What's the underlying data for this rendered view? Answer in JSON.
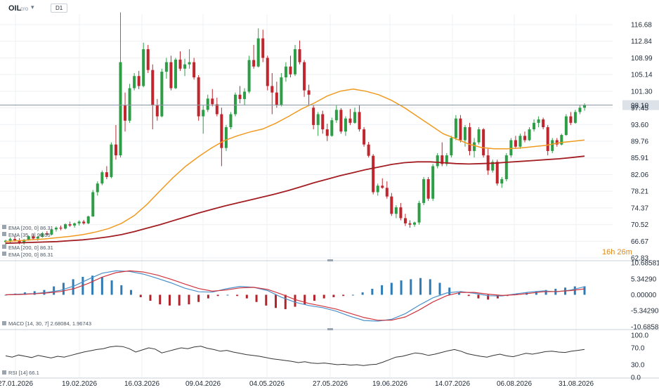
{
  "toolbar": {
    "symbol": "OIL",
    "symbol_suffix": "cro",
    "timeframe": "D1"
  },
  "colors": {
    "up": "#2e9e46",
    "down": "#c0262d",
    "ema_fast": "#f19a20",
    "ema_slow": "#a31d22",
    "price_line": "#8a96a3",
    "price_tag": "#dde2e8",
    "timer": "#e08a1c",
    "macd_line": "#4a90c9",
    "signal_line": "#d0343d",
    "hist_pos": "#2e7bb5",
    "hist_neg": "#b3232a",
    "rsi": "#333333",
    "grid": "#eef0f3",
    "axis_text": "#1f2a36"
  },
  "price_panel": {
    "current_price": "98.10",
    "timer": "16h 26m",
    "y_ticks": [
      "116.68",
      "112.84",
      "108.99",
      "105.14",
      "101.30",
      "97.45",
      "93.60",
      "89.76",
      "85.91",
      "82.06",
      "78.21",
      "74.37",
      "70.52",
      "66.67",
      "62.83"
    ],
    "legends": [
      "EMA [200, 0] 86.31",
      "EMA [35, 0] 90.05",
      "EMA [200, 0] 86.31",
      "EMA [200, 0] 86.31"
    ]
  },
  "macd_panel": {
    "legend": "MACD [14, 30, 7] 2.68084, 1.96743",
    "y_ticks": [
      "10.68581",
      "5.34290",
      "0.00000",
      "-5.34290",
      "-10.68581"
    ]
  },
  "rsi_panel": {
    "legend": "RSI [14] 66.1",
    "y_ticks": [
      "100.0",
      "70.0",
      "30.0",
      "0.0"
    ]
  },
  "x_axis": {
    "labels": [
      "27.01.2026",
      "19.02.2026",
      "16.03.2026",
      "09.04.2026",
      "04.05.2026",
      "27.05.2026",
      "19.06.2026",
      "14.07.2026",
      "06.08.2026",
      "31.08.2026"
    ]
  },
  "chart_data": {
    "type": "candlestick",
    "y_range": [
      62.83,
      116.68
    ],
    "candles": [
      [
        66.5,
        67.0,
        65.8,
        66.8
      ],
      [
        66.8,
        67.5,
        66.3,
        67.2
      ],
      [
        67.2,
        67.8,
        66.6,
        66.9
      ],
      [
        66.9,
        67.4,
        66.0,
        66.4
      ],
      [
        66.4,
        67.2,
        65.9,
        67.0
      ],
      [
        67.0,
        68.0,
        66.8,
        67.8
      ],
      [
        67.8,
        68.3,
        67.0,
        67.3
      ],
      [
        67.3,
        67.9,
        66.8,
        67.7
      ],
      [
        67.7,
        68.8,
        67.5,
        68.5
      ],
      [
        68.5,
        69.0,
        67.9,
        68.2
      ],
      [
        68.2,
        69.6,
        68.0,
        69.4
      ],
      [
        69.4,
        70.1,
        68.9,
        69.8
      ],
      [
        69.8,
        70.3,
        69.2,
        69.6
      ],
      [
        69.6,
        70.8,
        69.4,
        70.6
      ],
      [
        70.6,
        71.2,
        70.0,
        70.3
      ],
      [
        70.3,
        71.0,
        69.8,
        70.8
      ],
      [
        70.8,
        71.5,
        70.3,
        71.2
      ],
      [
        71.2,
        71.6,
        70.5,
        70.8
      ],
      [
        70.8,
        72.6,
        70.6,
        72.4
      ],
      [
        72.4,
        78.5,
        72.3,
        78.0
      ],
      [
        78.0,
        80.5,
        77.2,
        80.0
      ],
      [
        80.0,
        83.0,
        79.6,
        82.6
      ],
      [
        82.6,
        84.0,
        81.0,
        81.5
      ],
      [
        81.5,
        89.5,
        81.2,
        89.0
      ],
      [
        89.0,
        93.5,
        85.5,
        86.5
      ],
      [
        86.5,
        119.5,
        86.0,
        108.0
      ],
      [
        98.0,
        101.0,
        92.0,
        94.5
      ],
      [
        94.5,
        103.0,
        94.0,
        102.0
      ],
      [
        102.0,
        105.5,
        101.5,
        104.8
      ],
      [
        104.8,
        106.0,
        101.8,
        102.5
      ],
      [
        102.5,
        112.5,
        102.2,
        111.0
      ],
      [
        111.0,
        112.0,
        105.5,
        106.2
      ],
      [
        106.2,
        107.5,
        92.5,
        98.0
      ],
      [
        98.0,
        99.5,
        94.5,
        95.5
      ],
      [
        95.5,
        106.5,
        95.3,
        105.8
      ],
      [
        105.8,
        109.0,
        104.2,
        108.0
      ],
      [
        108.0,
        109.5,
        101.5,
        102.0
      ],
      [
        102.0,
        109.0,
        101.8,
        108.6
      ],
      [
        108.6,
        110.5,
        106.0,
        106.5
      ],
      [
        106.5,
        108.8,
        104.8,
        107.5
      ],
      [
        107.5,
        111.0,
        106.5,
        108.0
      ],
      [
        108.0,
        109.0,
        104.0,
        104.5
      ],
      [
        104.5,
        105.0,
        94.5,
        95.5
      ],
      [
        95.5,
        98.0,
        91.5,
        97.0
      ],
      [
        97.0,
        100.5,
        96.5,
        99.6
      ],
      [
        99.6,
        101.8,
        97.8,
        98.3
      ],
      [
        98.3,
        99.8,
        95.5,
        96.0
      ],
      [
        96.0,
        97.5,
        84.0,
        88.2
      ],
      [
        88.2,
        93.5,
        87.5,
        93.0
      ],
      [
        93.0,
        96.5,
        92.5,
        96.0
      ],
      [
        96.0,
        101.0,
        95.5,
        100.5
      ],
      [
        100.5,
        102.5,
        98.5,
        99.5
      ],
      [
        99.5,
        102.0,
        98.0,
        101.2
      ],
      [
        101.2,
        109.5,
        100.8,
        108.5
      ],
      [
        108.5,
        112.0,
        106.5,
        107.0
      ],
      [
        107.0,
        115.8,
        106.8,
        113.5
      ],
      [
        113.5,
        115.5,
        108.0,
        109.0
      ],
      [
        109.0,
        109.5,
        101.5,
        102.5
      ],
      [
        102.5,
        105.5,
        96.0,
        101.0
      ],
      [
        101.0,
        103.5,
        97.5,
        98.2
      ],
      [
        98.2,
        105.5,
        97.8,
        104.5
      ],
      [
        104.5,
        108.0,
        103.5,
        107.0
      ],
      [
        107.0,
        109.5,
        104.5,
        105.2
      ],
      [
        105.2,
        112.0,
        104.8,
        111.0
      ],
      [
        111.0,
        113.0,
        107.5,
        108.0
      ],
      [
        108.0,
        108.5,
        100.0,
        101.5
      ],
      [
        101.5,
        102.8,
        98.0,
        100.5
      ],
      [
        97.5,
        98.0,
        92.5,
        93.5
      ],
      [
        93.5,
        96.5,
        91.0,
        96.0
      ],
      [
        96.0,
        96.8,
        91.5,
        92.5
      ],
      [
        92.5,
        93.8,
        89.8,
        91.0
      ],
      [
        91.0,
        95.2,
        90.8,
        94.6
      ],
      [
        94.6,
        98.0,
        94.0,
        97.0
      ],
      [
        97.0,
        97.4,
        91.5,
        92.0
      ],
      [
        92.0,
        95.5,
        91.0,
        95.0
      ],
      [
        95.0,
        97.2,
        93.5,
        94.0
      ],
      [
        94.0,
        97.5,
        93.8,
        96.5
      ],
      [
        96.5,
        98.0,
        92.0,
        92.5
      ],
      [
        92.5,
        93.0,
        88.5,
        89.0
      ],
      [
        89.0,
        89.6,
        86.0,
        86.4
      ],
      [
        86.4,
        86.8,
        77.5,
        78.0
      ],
      [
        78.0,
        80.0,
        77.2,
        79.5
      ],
      [
        79.5,
        81.2,
        78.8,
        79.0
      ],
      [
        79.0,
        80.5,
        76.5,
        77.0
      ],
      [
        77.0,
        77.8,
        72.5,
        73.0
      ],
      [
        73.0,
        75.0,
        72.0,
        74.5
      ],
      [
        74.5,
        75.5,
        71.5,
        72.0
      ],
      [
        72.0,
        73.0,
        70.2,
        70.8
      ],
      [
        70.8,
        71.5,
        69.8,
        70.5
      ],
      [
        70.5,
        71.2,
        70.0,
        71.0
      ],
      [
        71.0,
        76.0,
        70.5,
        75.5
      ],
      [
        75.5,
        81.5,
        75.0,
        81.0
      ],
      [
        81.0,
        81.5,
        76.0,
        76.5
      ],
      [
        76.5,
        84.5,
        76.0,
        84.0
      ],
      [
        84.0,
        87.0,
        83.5,
        86.5
      ],
      [
        86.5,
        89.5,
        84.0,
        84.5
      ],
      [
        84.5,
        87.0,
        84.0,
        86.5
      ],
      [
        86.5,
        91.0,
        86.0,
        90.5
      ],
      [
        90.5,
        95.8,
        90.0,
        95.0
      ],
      [
        95.0,
        95.8,
        89.5,
        90.0
      ],
      [
        90.0,
        93.5,
        88.5,
        93.0
      ],
      [
        93.0,
        94.0,
        86.5,
        87.5
      ],
      [
        87.5,
        90.5,
        86.0,
        89.5
      ],
      [
        89.5,
        93.0,
        89.0,
        92.5
      ],
      [
        92.5,
        92.8,
        86.0,
        86.5
      ],
      [
        86.5,
        88.0,
        82.0,
        83.0
      ],
      [
        83.0,
        85.5,
        82.5,
        85.0
      ],
      [
        85.0,
        85.5,
        79.5,
        80.0
      ],
      [
        80.0,
        81.5,
        79.0,
        81.0
      ],
      [
        81.0,
        87.0,
        80.5,
        86.5
      ],
      [
        86.5,
        90.5,
        86.0,
        90.0
      ],
      [
        90.0,
        91.0,
        88.0,
        88.5
      ],
      [
        88.5,
        91.5,
        88.0,
        91.0
      ],
      [
        91.0,
        92.0,
        89.5,
        90.0
      ],
      [
        90.0,
        93.0,
        89.8,
        92.5
      ],
      [
        92.5,
        94.8,
        92.0,
        94.0
      ],
      [
        94.0,
        95.5,
        93.0,
        94.8
      ],
      [
        94.8,
        95.2,
        92.5,
        93.0
      ],
      [
        93.0,
        93.5,
        86.5,
        87.5
      ],
      [
        87.5,
        90.5,
        87.0,
        90.0
      ],
      [
        90.0,
        90.5,
        88.5,
        89.0
      ],
      [
        89.0,
        91.5,
        88.8,
        91.2
      ],
      [
        91.2,
        96.0,
        91.0,
        95.5
      ],
      [
        95.5,
        96.5,
        93.5,
        94.0
      ],
      [
        94.0,
        97.0,
        93.8,
        96.5
      ],
      [
        96.5,
        98.0,
        96.0,
        97.5
      ],
      [
        97.5,
        98.5,
        96.8,
        98.1
      ]
    ],
    "ema_fast_name": "EMA [35, 0] 90.05",
    "ema_slow_name": "EMA [200, 0] 86.31",
    "ema_fast": [
      66.6,
      66.8,
      67.0,
      67.2,
      67.5,
      67.8,
      68.2,
      68.8,
      69.6,
      70.8,
      72.6,
      75.2,
      78.3,
      81.3,
      84.0,
      86.2,
      88.2,
      89.9,
      91.0,
      91.9,
      92.6,
      93.9,
      95.5,
      97.2,
      98.6,
      100.2,
      101.3,
      101.8,
      101.3,
      100.5,
      99.2,
      97.5,
      95.5,
      93.5,
      91.5,
      90.3,
      89.1,
      88.3,
      88.0,
      88.0,
      88.2,
      88.5,
      88.8,
      89.4,
      89.7,
      90.05
    ],
    "ema_slow": [
      66.2,
      66.3,
      66.4,
      66.5,
      66.6,
      66.8,
      67.0,
      67.3,
      67.7,
      68.2,
      68.9,
      69.7,
      70.5,
      71.4,
      72.3,
      73.2,
      74.0,
      74.8,
      75.5,
      76.2,
      76.9,
      77.6,
      78.4,
      79.3,
      80.2,
      81.0,
      81.8,
      82.5,
      83.2,
      83.8,
      84.4,
      84.8,
      85.0,
      85.0,
      84.8,
      84.6,
      84.5,
      84.6,
      84.7,
      84.9,
      85.1,
      85.3,
      85.5,
      85.7,
      86.0,
      86.31
    ],
    "macd": {
      "range": [
        -10.68581,
        10.68581
      ],
      "macd_line": [
        0.0,
        0.2,
        0.4,
        0.8,
        1.5,
        3.0,
        5.2,
        7.2,
        8.0,
        7.8,
        6.9,
        5.5,
        4.0,
        2.2,
        1.0,
        0.9,
        2.0,
        2.8,
        2.5,
        1.4,
        -0.8,
        -2.5,
        -3.6,
        -4.3,
        -5.5,
        -7.2,
        -8.6,
        -8.8,
        -8.2,
        -6.3,
        -3.5,
        -1.0,
        0.6,
        1.1,
        0.5,
        -0.3,
        -0.4,
        0.3,
        0.9,
        1.3,
        1.0,
        1.6,
        2.68084
      ],
      "signal_line": [
        0.0,
        0.1,
        0.3,
        0.6,
        1.1,
        2.1,
        3.8,
        5.9,
        7.4,
        8.0,
        7.6,
        6.6,
        5.2,
        3.6,
        2.1,
        1.2,
        1.6,
        2.3,
        2.5,
        1.8,
        0.2,
        -1.6,
        -2.9,
        -3.8,
        -4.8,
        -6.2,
        -7.6,
        -8.5,
        -8.5,
        -7.4,
        -5.1,
        -2.4,
        -0.3,
        0.8,
        0.8,
        0.2,
        -0.2,
        0.0,
        0.5,
        1.0,
        1.1,
        1.4,
        1.96743
      ],
      "histogram": [
        0.0,
        0.1,
        0.2,
        0.3,
        0.4,
        0.7,
        1.0,
        1.3,
        1.5,
        1.6,
        1.5,
        1.2,
        0.8,
        0.4,
        -0.2,
        -0.5,
        -0.8,
        -0.9,
        -0.9,
        -0.8,
        -0.6,
        -0.3,
        -0.1,
        0.0,
        -0.1,
        -0.3,
        -0.6,
        -0.9,
        -1.1,
        -1.2,
        -1.0,
        -0.8,
        -0.5,
        -0.3,
        -0.2,
        -0.1,
        0.0,
        0.2,
        0.5,
        0.8,
        1.0,
        1.2,
        1.3,
        1.4,
        1.3,
        1.0,
        0.6,
        0.2,
        -0.1,
        -0.3,
        -0.4,
        -0.3,
        -0.1,
        0.1,
        0.2,
        0.3,
        0.4,
        0.5,
        0.6,
        0.7,
        0.71
      ]
    },
    "rsi": {
      "range": [
        0,
        100
      ],
      "values": [
        51,
        48,
        53,
        50,
        47,
        52,
        49,
        46,
        50,
        48,
        52,
        56,
        60,
        63,
        66,
        68,
        72,
        74,
        73,
        68,
        60,
        65,
        70,
        67,
        58,
        62,
        66,
        70,
        68,
        72,
        74,
        69,
        66,
        62,
        64,
        60,
        57,
        54,
        52,
        50,
        47,
        44,
        42,
        40,
        38,
        35,
        37,
        34,
        33,
        34,
        32,
        30,
        31,
        29,
        30,
        28,
        30,
        31,
        36,
        42,
        48,
        50,
        54,
        58,
        56,
        52,
        55,
        59,
        63,
        66,
        62,
        56,
        53,
        50,
        48,
        52,
        55,
        51,
        49,
        53,
        57,
        55,
        58,
        61,
        62,
        60,
        59,
        62,
        64,
        66.1
      ]
    }
  }
}
